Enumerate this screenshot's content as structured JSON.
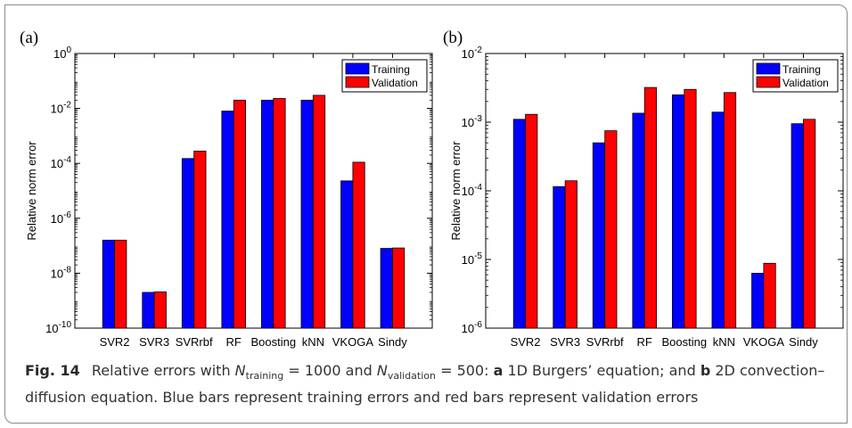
{
  "chart_data": [
    {
      "panel_label": "(a)",
      "type": "bar",
      "scale": "log",
      "ylabel": "Relative norm error",
      "yticks": [
        {
          "value": 1.0,
          "base": "10",
          "exp": "0"
        },
        {
          "value": 0.01,
          "base": "10",
          "exp": "-2"
        },
        {
          "value": 0.0001,
          "base": "10",
          "exp": "-4"
        },
        {
          "value": 1e-06,
          "base": "10",
          "exp": "-6"
        },
        {
          "value": 1e-08,
          "base": "10",
          "exp": "-8"
        },
        {
          "value": 1e-10,
          "base": "10",
          "exp": "-10"
        }
      ],
      "ylim": [
        1e-10,
        1.0
      ],
      "categories": [
        "SVR2",
        "SVR3",
        "SVRrbf",
        "RF",
        "Boosting",
        "kNN",
        "VKOGA",
        "Sindy"
      ],
      "series": [
        {
          "name": "Training",
          "color": "#0000ff",
          "values": [
            1.6e-07,
            2e-09,
            0.00015,
            0.008,
            0.02,
            0.02,
            2.3e-05,
            8e-08
          ]
        },
        {
          "name": "Validation",
          "color": "#ff0000",
          "values": [
            1.6e-07,
            2.1e-09,
            0.00028,
            0.02,
            0.023,
            0.03,
            0.00011,
            8.3e-08
          ]
        }
      ],
      "legend_position": "top-right",
      "grid": false
    },
    {
      "panel_label": "(b)",
      "type": "bar",
      "scale": "log",
      "ylabel": "Relative norm error",
      "yticks": [
        {
          "value": 0.01,
          "base": "10",
          "exp": "-2"
        },
        {
          "value": 0.001,
          "base": "10",
          "exp": "-3"
        },
        {
          "value": 0.0001,
          "base": "10",
          "exp": "-4"
        },
        {
          "value": 1e-05,
          "base": "10",
          "exp": "-5"
        },
        {
          "value": 1e-06,
          "base": "10",
          "exp": "-6"
        }
      ],
      "ylim": [
        1e-06,
        0.01
      ],
      "categories": [
        "SVR2",
        "SVR3",
        "SVRrbf",
        "RF",
        "Boosting",
        "kNN",
        "VKOGA",
        "Sindy"
      ],
      "series": [
        {
          "name": "Training",
          "color": "#0000ff",
          "values": [
            0.0011,
            0.000115,
            0.0005,
            0.00135,
            0.0025,
            0.0014,
            6.3e-06,
            0.00095
          ]
        },
        {
          "name": "Validation",
          "color": "#ff0000",
          "values": [
            0.0013,
            0.00014,
            0.00075,
            0.0032,
            0.003,
            0.0027,
            8.8e-06,
            0.0011
          ]
        }
      ],
      "legend_position": "top-right",
      "grid": false
    }
  ],
  "caption": {
    "figure_label": "Fig. 14",
    "text_1": "Relative errors with ",
    "n_symbol": "N",
    "training_sub": "training",
    "eq_1": " = 1000 and ",
    "validation_sub": "validation",
    "eq_2": " = 500: ",
    "label_a": "a",
    "desc_a": " 1D Burgers’ equation; and ",
    "label_b": "b",
    "desc_b": " 2D convection–diffusion equation. Blue bars represent training errors and red bars represent validation errors"
  }
}
